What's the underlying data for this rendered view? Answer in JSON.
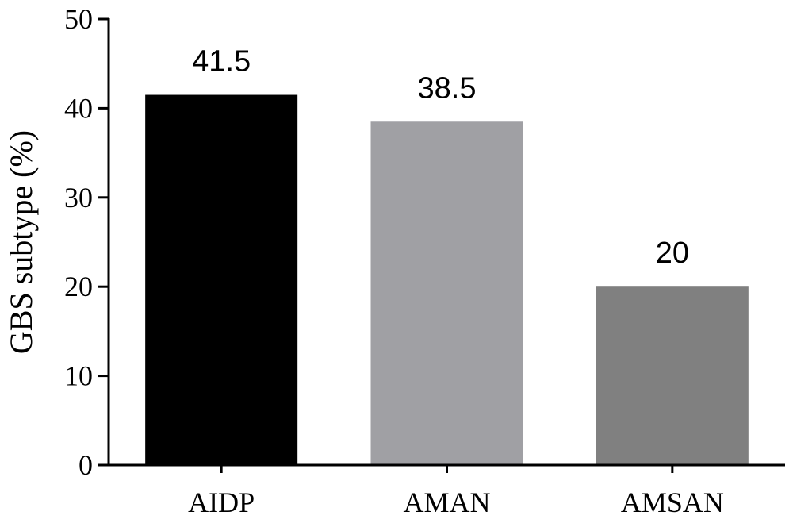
{
  "chart_data": {
    "type": "bar",
    "categories": [
      "AIDP",
      "AMAN",
      "AMSAN"
    ],
    "values": [
      41.5,
      38.5,
      20
    ],
    "value_labels": [
      "41.5",
      "38.5",
      "20"
    ],
    "colors": [
      "#000000",
      "#a0a0a4",
      "#808080"
    ],
    "title": "",
    "xlabel": "",
    "ylabel": "GBS subtype (%)",
    "ylim": [
      0,
      50
    ],
    "yticks": [
      0,
      10,
      20,
      30,
      40,
      50
    ],
    "grid": false,
    "legend": "none"
  }
}
